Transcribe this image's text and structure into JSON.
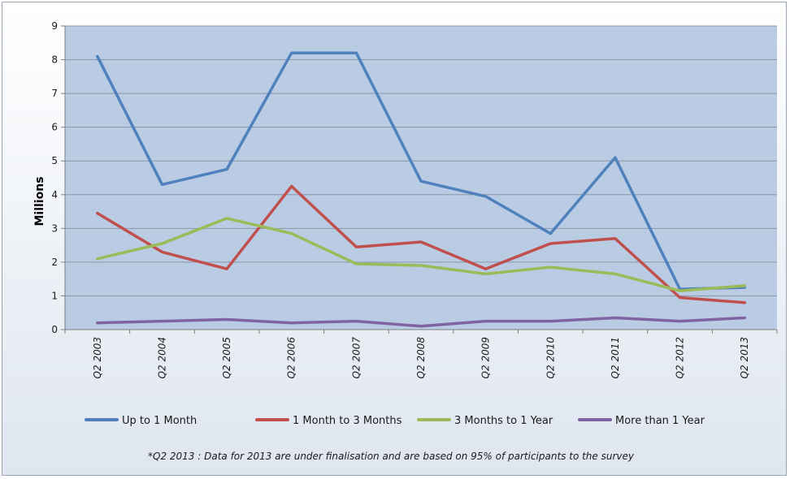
{
  "chart_data": {
    "type": "line",
    "title": "",
    "xlabel": "",
    "ylabel": "Millions",
    "ylim": [
      0,
      9
    ],
    "yticks": [
      "0",
      "1",
      "2",
      "3",
      "4",
      "5",
      "6",
      "7",
      "8",
      "9"
    ],
    "grid": true,
    "legend_position": "bottom",
    "categories": [
      "Q2 2003",
      "Q2 2004",
      "Q2 2005",
      "Q2 2006",
      "Q2 2007",
      "Q2 2008",
      "Q2 2009",
      "Q2 2010",
      "Q2 2011",
      "Q2 2012",
      "Q2 2013"
    ],
    "series": [
      {
        "name": "Up to 1 Month",
        "color": "#4f81bd",
        "values": [
          8.1,
          4.3,
          4.75,
          8.2,
          8.2,
          4.4,
          3.95,
          2.85,
          5.1,
          1.2,
          1.25
        ]
      },
      {
        "name": "1 Month to 3 Months",
        "color": "#c0504d",
        "values": [
          3.45,
          2.3,
          1.8,
          4.25,
          2.45,
          2.6,
          1.8,
          2.55,
          2.7,
          0.95,
          0.8
        ]
      },
      {
        "name": "3 Months to 1 Year",
        "color": "#9bbb59",
        "values": [
          2.1,
          2.55,
          3.3,
          2.85,
          1.95,
          1.9,
          1.65,
          1.85,
          1.65,
          1.15,
          1.3
        ]
      },
      {
        "name": "More than 1 Year",
        "color": "#8064a2",
        "values": [
          0.2,
          0.25,
          0.3,
          0.2,
          0.25,
          0.1,
          0.25,
          0.25,
          0.35,
          0.25,
          0.35
        ]
      }
    ],
    "footnote": "*Q2 2013 : Data for 2013 are under finalisation and are based on 95% of participants to the survey"
  }
}
